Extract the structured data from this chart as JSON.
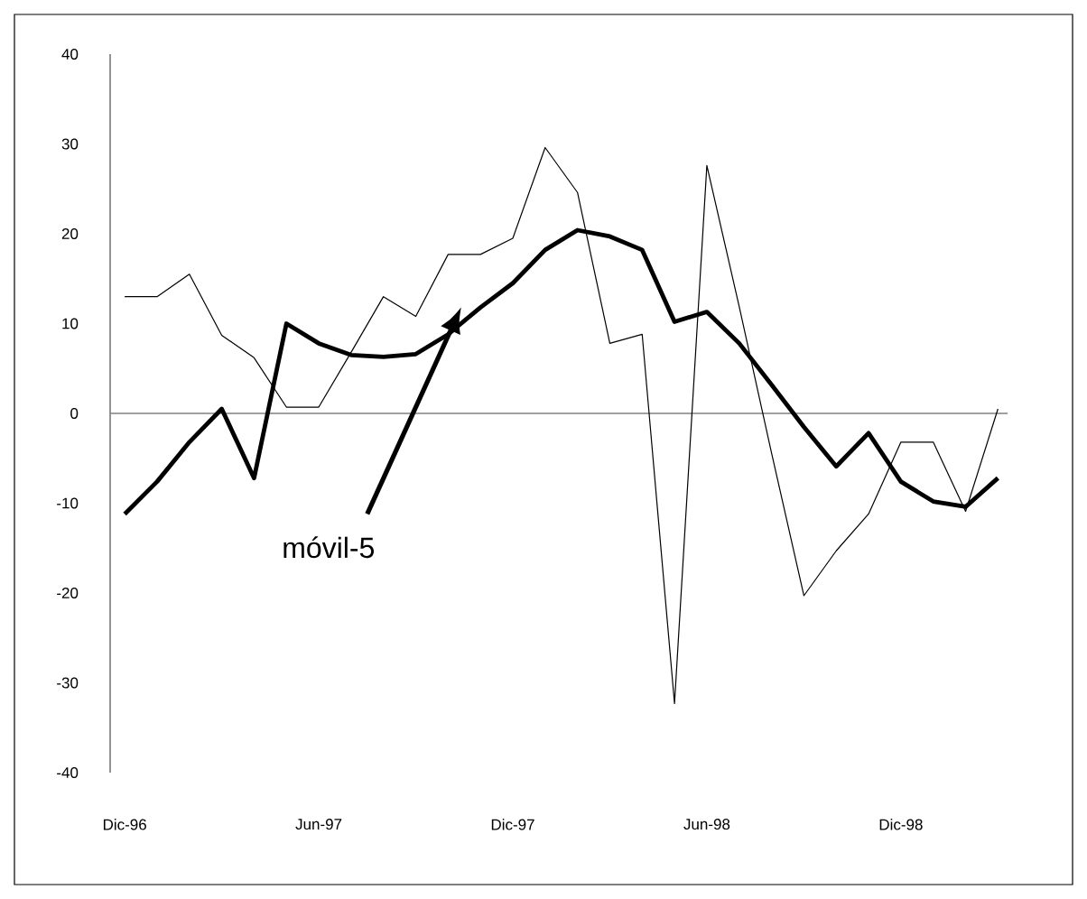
{
  "chart_data": {
    "type": "line",
    "categories": [
      "Dic-96",
      null,
      null,
      null,
      null,
      null,
      "Jun-97",
      null,
      null,
      null,
      null,
      null,
      "Dic-97",
      null,
      null,
      null,
      null,
      null,
      "Jun-98",
      null,
      null,
      null,
      null,
      null,
      "Dic-98",
      null,
      null,
      null
    ],
    "series": [
      {
        "color": "#000000",
        "values": [
          13,
          13,
          15.5,
          8.7,
          6.2,
          0.7,
          0.7,
          6.8,
          13,
          10.8,
          17.7,
          17.7,
          19.5,
          29.6,
          24.6,
          7.8,
          8.8,
          -32.3,
          27.6,
          11.9,
          -4.4,
          -20.3,
          -15.3,
          -11.2,
          -3.2,
          -3.2,
          -10.9,
          0.5
        ]
      },
      {
        "name": "móvil-5",
        "color": "#000000",
        "values": [
          -11.2,
          -7.6,
          -3.2,
          0.5,
          -7.2,
          10,
          7.8,
          6.5,
          6.3,
          6.6,
          8.8,
          11.8,
          14.5,
          18.2,
          20.4,
          19.7,
          18.2,
          10.2,
          11.3,
          7.8,
          3.2,
          -1.5,
          -5.9,
          -2.2,
          -7.6,
          -9.8,
          -10.4,
          -7.2
        ]
      }
    ],
    "ylim": [
      -40,
      40
    ],
    "yticks": [
      -40,
      -30,
      -20,
      -10,
      0,
      10,
      20,
      30,
      40
    ],
    "ref_lines": [
      {
        "axis": "y",
        "value": 0,
        "color": "#808080"
      }
    ]
  }
}
